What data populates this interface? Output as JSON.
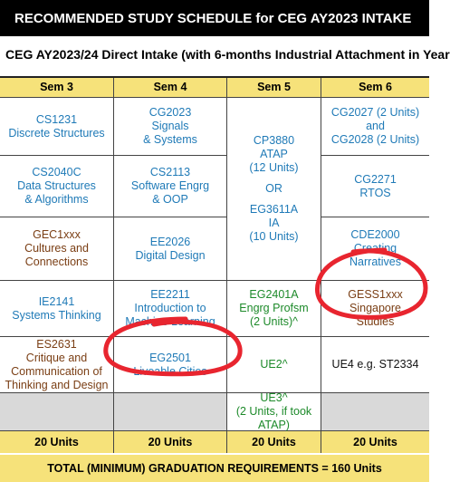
{
  "banner": "RECOMMENDED STUDY SCHEDULE for CEG AY2023 INTAKE",
  "subtitle": "CEG AY2023/24 Direct Intake (with 6-months Industrial Attachment in Year",
  "columns": [
    {
      "header": "Sem 3",
      "cells": [
        [
          "CS1231",
          "Discrete Structures"
        ],
        [
          "CS2040C",
          "Data Structures",
          "& Algorithms"
        ],
        [
          "GEC1xxx",
          "Cultures and",
          "Connections"
        ],
        [
          "IE2141",
          "Systems Thinking"
        ],
        [
          "ES2631",
          "Critique and",
          "Communication of",
          "Thinking and Design"
        ]
      ],
      "units": "20 Units"
    },
    {
      "header": "Sem 4",
      "cells": [
        [
          "CG2023",
          "Signals",
          "& Systems"
        ],
        [
          "CS2113",
          "Software Engrg",
          "& OOP"
        ],
        [
          "EE2026",
          "Digital Design"
        ],
        [
          "EE2211",
          "Introduction to",
          "Machine Learning"
        ],
        [
          "EG2501",
          "Liveable Cities"
        ]
      ],
      "units": "20 Units"
    },
    {
      "header": "Sem 5",
      "cells": [
        [
          "CP3880",
          "ATAP",
          "(12 Units)",
          "",
          "OR",
          "",
          "EG3611A",
          "IA",
          "(10 Units)"
        ],
        [
          "EG2401A",
          "Engrg Profsm",
          "(2 Units)^"
        ],
        [
          "UE2^"
        ],
        [
          "UE3^",
          "(2 Units, if took",
          "ATAP)"
        ]
      ],
      "units": "20 Units"
    },
    {
      "header": "Sem 6",
      "cells": [
        [
          "CG2027 (2 Units)",
          "and",
          "CG2028 (2 Units)"
        ],
        [
          "CG2271",
          "RTOS"
        ],
        [
          "CDE2000",
          "Creating",
          "Narratives"
        ],
        [
          "GESS1xxx",
          "Singapore",
          "Studies"
        ],
        [
          "UE4 e.g. ST2334"
        ]
      ],
      "units": "20 Units"
    }
  ],
  "total": "TOTAL (MINIMUM) GRADUATION REQUIREMENTS = 160 Units",
  "annotation_color": "#e8252f"
}
